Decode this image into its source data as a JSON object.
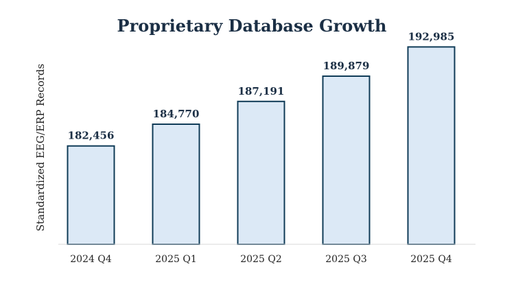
{
  "chart_data": {
    "type": "bar",
    "title": "Proprietary Database Growth",
    "xlabel": "",
    "ylabel": "Standardized EEG/ERP Records",
    "categories": [
      "2024 Q4",
      "2025 Q1",
      "2025 Q2",
      "2025 Q3",
      "2025 Q4"
    ],
    "values": [
      182456,
      184770,
      187191,
      189879,
      192985
    ],
    "value_labels": [
      "182,456",
      "184,770",
      "187,191",
      "189,879",
      "192,985"
    ],
    "ylim": [
      172000,
      194000
    ],
    "grid": false,
    "legend": "none",
    "colors": {
      "bar_fill": "#dce9f6",
      "bar_edge": "#0f3b57",
      "title": "#1b2f45",
      "value_label": "#1b2f45",
      "axis": "#d9d9d9"
    }
  }
}
